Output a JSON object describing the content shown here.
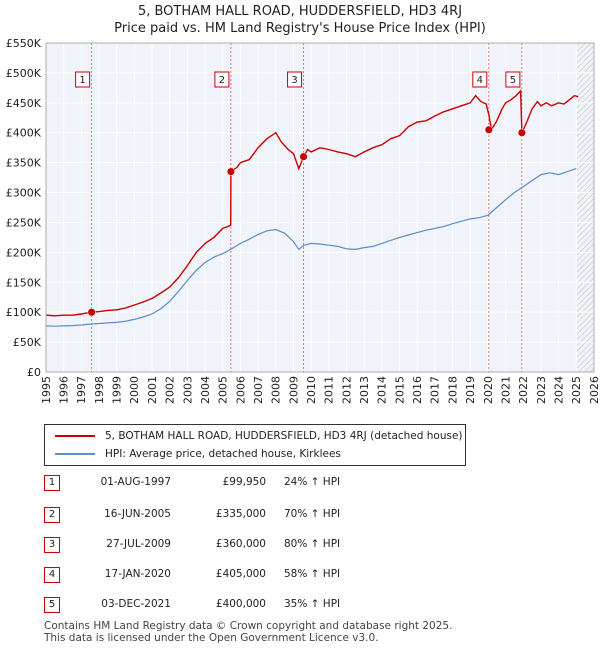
{
  "title_line1": "5, BOTHAM HALL ROAD, HUDDERSFIELD, HD3 4RJ",
  "title_line2": "Price paid vs. HM Land Registry's House Price Index (HPI)",
  "chart_data": {
    "type": "line",
    "title": "5, BOTHAM HALL ROAD, HUDDERSFIELD, HD3 4RJ — Price paid vs. HM Land Registry's House Price Index (HPI)",
    "xlim": [
      1995,
      2026
    ],
    "ylim": [
      0,
      550000
    ],
    "x_ticks": [
      1995,
      1996,
      1997,
      1998,
      1999,
      2000,
      2001,
      2002,
      2003,
      2004,
      2005,
      2006,
      2007,
      2008,
      2009,
      2010,
      2011,
      2012,
      2013,
      2014,
      2015,
      2016,
      2017,
      2018,
      2019,
      2020,
      2021,
      2022,
      2023,
      2024,
      2025,
      2026
    ],
    "y_ticks": [
      0,
      50000,
      100000,
      150000,
      200000,
      250000,
      300000,
      350000,
      400000,
      450000,
      500000,
      550000
    ],
    "y_tick_labels": [
      "£0",
      "£50K",
      "£100K",
      "£150K",
      "£200K",
      "£250K",
      "£300K",
      "£350K",
      "£400K",
      "£450K",
      "£500K",
      "£550K"
    ],
    "grid": true,
    "hatched_future_from": 2025.0,
    "series": [
      {
        "name": "5, BOTHAM HALL ROAD, HUDDERSFIELD, HD3 4RJ (detached house)",
        "color": "#cc0000",
        "x": [
          1995.0,
          1995.5,
          1996.0,
          1996.5,
          1997.0,
          1997.58,
          1998.0,
          1998.5,
          1999.0,
          1999.5,
          2000.0,
          2000.5,
          2001.0,
          2001.5,
          2002.0,
          2002.5,
          2003.0,
          2003.5,
          2004.0,
          2004.5,
          2005.0,
          2005.45,
          2005.46,
          2005.8,
          2006.0,
          2006.5,
          2007.0,
          2007.5,
          2008.0,
          2008.3,
          2008.7,
          2009.0,
          2009.3,
          2009.57,
          2009.8,
          2010.0,
          2010.5,
          2011.0,
          2011.5,
          2012.0,
          2012.5,
          2013.0,
          2013.5,
          2014.0,
          2014.5,
          2015.0,
          2015.5,
          2016.0,
          2016.5,
          2017.0,
          2017.5,
          2018.0,
          2018.5,
          2019.0,
          2019.3,
          2019.6,
          2019.9,
          2020.05,
          2020.2,
          2020.5,
          2020.8,
          2021.0,
          2021.3,
          2021.6,
          2021.85,
          2021.92,
          2022.2,
          2022.5,
          2022.8,
          2023.0,
          2023.3,
          2023.6,
          2024.0,
          2024.3,
          2024.6,
          2024.9,
          2025.1
        ],
        "values": [
          95000,
          94000,
          95000,
          95000,
          97000,
          99950,
          101000,
          103000,
          104000,
          107000,
          112000,
          117000,
          123000,
          132000,
          142000,
          158000,
          178000,
          200000,
          215000,
          225000,
          240000,
          245000,
          335000,
          342000,
          350000,
          355000,
          375000,
          390000,
          400000,
          385000,
          372000,
          365000,
          340000,
          360000,
          372000,
          368000,
          375000,
          372000,
          368000,
          365000,
          360000,
          368000,
          375000,
          380000,
          390000,
          395000,
          410000,
          418000,
          420000,
          428000,
          435000,
          440000,
          445000,
          450000,
          462000,
          452000,
          448000,
          430000,
          405000,
          420000,
          440000,
          450000,
          455000,
          462000,
          470000,
          400000,
          418000,
          440000,
          452000,
          445000,
          450000,
          445000,
          450000,
          448000,
          455000,
          462000,
          460000
        ]
      },
      {
        "name": "HPI: Average price, detached house, Kirklees",
        "color": "#5b8ec4",
        "x": [
          1995.0,
          1995.5,
          1996.0,
          1996.5,
          1997.0,
          1997.5,
          1998.0,
          1998.5,
          1999.0,
          1999.5,
          2000.0,
          2000.5,
          2001.0,
          2001.5,
          2002.0,
          2002.5,
          2003.0,
          2003.5,
          2004.0,
          2004.5,
          2005.0,
          2005.5,
          2006.0,
          2006.5,
          2007.0,
          2007.5,
          2008.0,
          2008.5,
          2009.0,
          2009.3,
          2009.6,
          2010.0,
          2010.5,
          2011.0,
          2011.5,
          2012.0,
          2012.5,
          2013.0,
          2013.5,
          2014.0,
          2014.5,
          2015.0,
          2015.5,
          2016.0,
          2016.5,
          2017.0,
          2017.5,
          2018.0,
          2018.5,
          2019.0,
          2019.5,
          2020.0,
          2020.5,
          2021.0,
          2021.5,
          2022.0,
          2022.5,
          2023.0,
          2023.5,
          2024.0,
          2024.5,
          2025.0
        ],
        "values": [
          77000,
          76500,
          77000,
          77500,
          78500,
          80000,
          81000,
          82000,
          83000,
          85000,
          88000,
          92000,
          97000,
          106000,
          118000,
          135000,
          153000,
          170000,
          183000,
          192000,
          198000,
          206000,
          215000,
          222000,
          230000,
          236000,
          238000,
          232000,
          218000,
          205000,
          212000,
          215000,
          214000,
          212000,
          210000,
          206000,
          205000,
          208000,
          210000,
          215000,
          220000,
          225000,
          229000,
          233000,
          237000,
          240000,
          243000,
          248000,
          252000,
          256000,
          258000,
          262000,
          275000,
          288000,
          300000,
          310000,
          320000,
          330000,
          333000,
          330000,
          335000,
          340000
        ]
      }
    ],
    "sales": [
      {
        "label": "1",
        "date": "01-AUG-1997",
        "x": 1997.58,
        "price": 99950,
        "price_label": "£99,950",
        "hpi": "24% ↑ HPI"
      },
      {
        "label": "2",
        "date": "16-JUN-2005",
        "x": 2005.46,
        "price": 335000,
        "price_label": "£335,000",
        "hpi": "70% ↑ HPI"
      },
      {
        "label": "3",
        "date": "27-JUL-2009",
        "x": 2009.57,
        "price": 360000,
        "price_label": "£360,000",
        "hpi": "80% ↑ HPI"
      },
      {
        "label": "4",
        "date": "17-JAN-2020",
        "x": 2020.05,
        "price": 405000,
        "price_label": "£405,000",
        "hpi": "58% ↑ HPI"
      },
      {
        "label": "5",
        "date": "03-DEC-2021",
        "x": 2021.92,
        "price": 400000,
        "price_label": "£400,000",
        "hpi": "35% ↑ HPI"
      }
    ]
  },
  "legend": {
    "property_label": "5, BOTHAM HALL ROAD, HUDDERSFIELD, HD3 4RJ (detached house)",
    "hpi_label": "HPI: Average price, detached house, Kirklees"
  },
  "footer": {
    "line1": "Contains HM Land Registry data © Crown copyright and database right 2025.",
    "line2": "This data is licensed under the Open Government Licence v3.0."
  }
}
